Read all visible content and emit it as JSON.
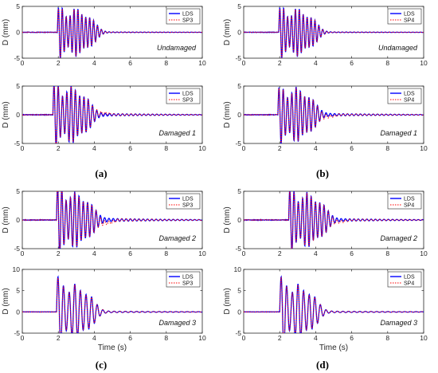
{
  "figure": {
    "panel_labels": [
      "(a)",
      "(b)",
      "(c)",
      "(d)"
    ]
  },
  "chart_data": [
    {
      "type": "line",
      "panel": "(a)",
      "annotation": "Undamaged",
      "ylabel": "D (mm)",
      "xlabel": "",
      "xlim": [
        0,
        10
      ],
      "ylim": [
        -5,
        5
      ],
      "xticks": [
        0,
        2,
        4,
        6,
        8,
        10
      ],
      "yticks": [
        -5,
        0,
        5
      ],
      "grid": false,
      "legend_position": "top-right",
      "series": [
        {
          "name": "LDS",
          "color": "#0000ff",
          "line": "solid"
        },
        {
          "name": "SP3",
          "color": "#ff0000",
          "line": "dotted"
        }
      ],
      "signal": {
        "onset": 1.95,
        "peak": 4.9,
        "second_peak": 4.4,
        "decay": 0.55,
        "freq": 4.6,
        "residual": 0.15,
        "noise": 0.08,
        "red_offset": 0
      }
    },
    {
      "type": "line",
      "panel": "(a)",
      "annotation": "Damaged 1",
      "ylabel": "D (mm)",
      "xlabel": "",
      "xlim": [
        0,
        10
      ],
      "ylim": [
        -5,
        5
      ],
      "xticks": [
        0,
        2,
        4,
        6,
        8,
        10
      ],
      "yticks": [
        -5,
        0,
        5
      ],
      "grid": false,
      "legend_position": "top-right",
      "series": [
        {
          "name": "LDS",
          "color": "#0000ff",
          "line": "solid"
        },
        {
          "name": "SP3",
          "color": "#ff0000",
          "line": "dotted"
        }
      ],
      "signal": {
        "onset": 1.7,
        "peak": 5.2,
        "second_peak": 4.5,
        "decay": 0.5,
        "freq": 4.2,
        "residual": 0.45,
        "noise": 0.1,
        "red_offset": 0.25
      }
    },
    {
      "type": "line",
      "panel": "(b)",
      "annotation": "Undamaged",
      "ylabel": "D (mm)",
      "xlabel": "",
      "xlim": [
        0,
        10
      ],
      "ylim": [
        -5,
        5
      ],
      "xticks": [
        0,
        2,
        4,
        6,
        8,
        10
      ],
      "yticks": [
        -5,
        0,
        5
      ],
      "grid": false,
      "legend_position": "top-right",
      "series": [
        {
          "name": "LDS",
          "color": "#0000ff",
          "line": "solid"
        },
        {
          "name": "SP4",
          "color": "#ff0000",
          "line": "dotted"
        }
      ],
      "signal": {
        "onset": 1.95,
        "peak": 4.9,
        "second_peak": 4.4,
        "decay": 0.55,
        "freq": 4.6,
        "residual": 0.15,
        "noise": 0.08,
        "red_offset": 0
      }
    },
    {
      "type": "line",
      "panel": "(b)",
      "annotation": "Damaged 1",
      "ylabel": "D (mm)",
      "xlabel": "",
      "xlim": [
        0,
        10
      ],
      "ylim": [
        -5,
        5
      ],
      "xticks": [
        0,
        2,
        4,
        6,
        8,
        10
      ],
      "yticks": [
        -5,
        0,
        5
      ],
      "grid": false,
      "legend_position": "top-right",
      "series": [
        {
          "name": "LDS",
          "color": "#0000ff",
          "line": "solid"
        },
        {
          "name": "SP4",
          "color": "#ff0000",
          "line": "dotted"
        }
      ],
      "signal": {
        "onset": 1.9,
        "peak": 4.6,
        "second_peak": 4.3,
        "decay": 0.5,
        "freq": 4.2,
        "residual": 0.45,
        "noise": 0.1,
        "red_offset": -0.3
      }
    },
    {
      "type": "line",
      "panel": "(c)",
      "annotation": "Damaged 2",
      "ylabel": "D (mm)",
      "xlabel": "",
      "xlim": [
        0,
        10
      ],
      "ylim": [
        -5,
        5
      ],
      "xticks": [
        0,
        2,
        4,
        6,
        8,
        10
      ],
      "yticks": [
        -5,
        0,
        5
      ],
      "grid": false,
      "legend_position": "top-right",
      "series": [
        {
          "name": "LDS",
          "color": "#0000ff",
          "line": "solid"
        },
        {
          "name": "SP3",
          "color": "#ff0000",
          "line": "dotted"
        }
      ],
      "signal": {
        "onset": 1.9,
        "peak": 5.8,
        "second_peak": 4.3,
        "decay": 0.5,
        "freq": 4.2,
        "residual": 0.55,
        "noise": 0.1,
        "red_offset": -0.5
      }
    },
    {
      "type": "line",
      "panel": "(c)",
      "annotation": "Damaged 3",
      "ylabel": "D (mm)",
      "xlabel": "Time (s)",
      "xlim": [
        0,
        10
      ],
      "ylim": [
        -5,
        10
      ],
      "xticks": [
        0,
        2,
        4,
        6,
        8,
        10
      ],
      "yticks": [
        -5,
        0,
        5,
        10
      ],
      "grid": false,
      "legend_position": "top-right",
      "series": [
        {
          "name": "LDS",
          "color": "#0000ff",
          "line": "solid"
        },
        {
          "name": "SP3",
          "color": "#ff0000",
          "line": "dotted"
        }
      ],
      "signal": {
        "onset": 1.9,
        "peak": 8.2,
        "second_peak": 6.0,
        "decay": 0.5,
        "freq": 3.2,
        "residual": 0.35,
        "noise": 0.06,
        "red_offset": 0
      }
    },
    {
      "type": "line",
      "panel": "(d)",
      "annotation": "Damaged 2",
      "ylabel": "D (mm)",
      "xlabel": "",
      "xlim": [
        0,
        10
      ],
      "ylim": [
        -5,
        5
      ],
      "xticks": [
        0,
        2,
        4,
        6,
        8,
        10
      ],
      "yticks": [
        -5,
        0,
        5
      ],
      "grid": false,
      "legend_position": "top-right",
      "series": [
        {
          "name": "LDS",
          "color": "#0000ff",
          "line": "solid"
        },
        {
          "name": "SP4",
          "color": "#ff0000",
          "line": "dotted"
        }
      ],
      "signal": {
        "onset": 2.5,
        "peak": 5.2,
        "second_peak": 4.3,
        "decay": 0.5,
        "freq": 4.2,
        "residual": 0.45,
        "noise": 0.1,
        "red_offset": -0.3
      }
    },
    {
      "type": "line",
      "panel": "(d)",
      "annotation": "Damaged 3",
      "ylabel": "D (mm)",
      "xlabel": "Time (s)",
      "xlim": [
        0,
        10
      ],
      "ylim": [
        -5,
        10
      ],
      "xticks": [
        0,
        2,
        4,
        6,
        8,
        10
      ],
      "yticks": [
        -5,
        0,
        5,
        10
      ],
      "grid": false,
      "legend_position": "top-right",
      "series": [
        {
          "name": "LDS",
          "color": "#0000ff",
          "line": "solid"
        },
        {
          "name": "SP4",
          "color": "#ff0000",
          "line": "dotted"
        }
      ],
      "signal": {
        "onset": 2.0,
        "peak": 8.2,
        "second_peak": 6.0,
        "decay": 0.5,
        "freq": 3.2,
        "residual": 0.35,
        "noise": 0.06,
        "red_offset": 0
      }
    }
  ]
}
